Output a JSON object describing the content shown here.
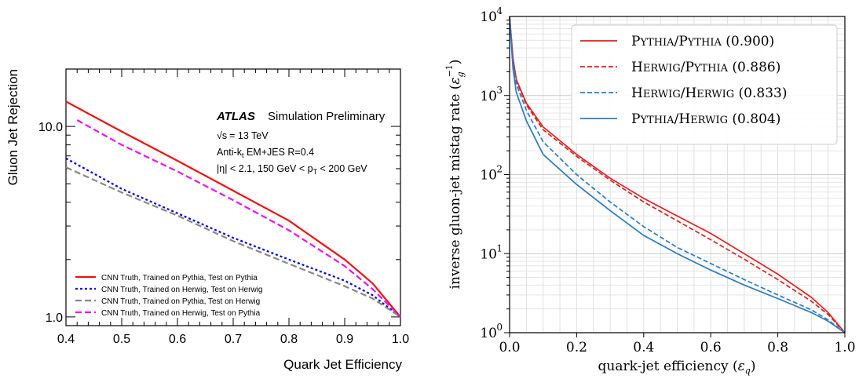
{
  "chart_data": [
    {
      "type": "line",
      "xlabel": "Quark Jet Efficiency",
      "ylabel": "Gluon Jet Rejection",
      "xlim": [
        0.4,
        1.0
      ],
      "ylim": [
        0.9,
        20
      ],
      "y_scale": "log",
      "x_ticks": [
        "0.4",
        "0.5",
        "0.6",
        "0.7",
        "0.8",
        "0.9",
        "1.0"
      ],
      "y_tick_labels": [
        {
          "value": 1,
          "label": "1.0"
        },
        {
          "value": 10,
          "label": "10.0"
        }
      ],
      "grid": false,
      "legend_position": "bottom-left",
      "annotation": {
        "atlas": "ATLAS",
        "status": "Simulation Preliminary",
        "sqrt_s_symbol": "√s",
        "energy": "= 13 TeV",
        "jets_prefix": "Anti-k",
        "jets_sub": "t",
        "jets_suffix": " EM+JES R=0.4",
        "eta_cut": "|η| < 2.1, 150 GeV < p",
        "pt_sub": "T",
        "pt_cut": " < 200 GeV"
      },
      "series": [
        {
          "name": "CNN Truth, Trained on Pythia, Test on Pythia",
          "color": "#ee1111",
          "dash": "solid",
          "x": [
            0.4,
            0.5,
            0.6,
            0.7,
            0.8,
            0.9,
            0.95,
            1.0
          ],
          "y": [
            13.5,
            9.4,
            6.6,
            4.6,
            3.2,
            2.0,
            1.5,
            1.0
          ]
        },
        {
          "name": "CNN Truth, Trained on Herwig, Test on Herwig",
          "color": "#0000ee",
          "dash": "dotted",
          "x": [
            0.4,
            0.5,
            0.6,
            0.7,
            0.8,
            0.9,
            0.95,
            1.0
          ],
          "y": [
            6.8,
            4.7,
            3.5,
            2.6,
            2.0,
            1.55,
            1.3,
            1.0
          ]
        },
        {
          "name": "CNN Truth, Trained on Pythia, Test on Herwig",
          "color": "#888888",
          "dash": "dashed",
          "x": [
            0.4,
            0.5,
            0.6,
            0.7,
            0.8,
            0.9,
            0.95,
            1.0
          ],
          "y": [
            6.1,
            4.5,
            3.4,
            2.5,
            1.9,
            1.45,
            1.25,
            1.0
          ]
        },
        {
          "name": "CNN Truth, Trained on Herwig, Test on Pythia",
          "color": "#ee11ee",
          "dash": "dashed",
          "x": [
            0.42,
            0.5,
            0.6,
            0.7,
            0.8,
            0.9,
            0.95,
            1.0
          ],
          "y": [
            10.8,
            8.0,
            5.8,
            4.1,
            2.85,
            1.85,
            1.4,
            1.0
          ]
        }
      ]
    },
    {
      "type": "line",
      "xlabel_main": "quark-jet efficiency (",
      "xlabel_sym": "ε",
      "xlabel_sub": "q",
      "xlabel_end": ")",
      "ylabel_main": "inverse gluon-jet mistag rate (",
      "ylabel_sym": "ε",
      "ylabel_sub": "g",
      "ylabel_sup": "−1",
      "ylabel_end": ")",
      "xlim": [
        0,
        1
      ],
      "ylim": [
        1,
        10000
      ],
      "y_scale": "log",
      "x_ticks": [
        "0.0",
        "0.2",
        "0.4",
        "0.6",
        "0.8",
        "1.0"
      ],
      "y_tick_labels": [
        {
          "value": 1,
          "base": "10",
          "exp": "0"
        },
        {
          "value": 10,
          "base": "10",
          "exp": "1"
        },
        {
          "value": 100,
          "base": "10",
          "exp": "2"
        },
        {
          "value": 1000,
          "base": "10",
          "exp": "3"
        },
        {
          "value": 10000,
          "base": "10",
          "exp": "4"
        }
      ],
      "grid": true,
      "legend_position": "top-right",
      "series": [
        {
          "name_a": "Pythia",
          "name_b": "Pythia",
          "score": "(0.900)",
          "color": "#e02020",
          "dash": "solid",
          "x": [
            0.0,
            0.01,
            0.02,
            0.05,
            0.1,
            0.2,
            0.3,
            0.4,
            0.5,
            0.6,
            0.7,
            0.8,
            0.9,
            0.95,
            1.0
          ],
          "y": [
            10000,
            3000,
            1600,
            800,
            400,
            180,
            90,
            50,
            30,
            18,
            10,
            5.5,
            2.8,
            1.8,
            1.0
          ]
        },
        {
          "name_a": "Herwig",
          "name_b": "Pythia",
          "score": "(0.886)",
          "color": "#e02020",
          "dash": "dashed",
          "x": [
            0.0,
            0.01,
            0.02,
            0.05,
            0.1,
            0.2,
            0.3,
            0.4,
            0.5,
            0.6,
            0.7,
            0.8,
            0.9,
            0.95,
            1.0
          ],
          "y": [
            10000,
            2900,
            1550,
            760,
            370,
            170,
            85,
            45,
            26,
            15,
            8.5,
            4.7,
            2.5,
            1.7,
            1.0
          ]
        },
        {
          "name_a": "Herwig",
          "name_b": "Herwig",
          "score": "(0.833)",
          "color": "#2b7bc4",
          "dash": "dashed",
          "x": [
            0.0,
            0.01,
            0.02,
            0.05,
            0.1,
            0.2,
            0.3,
            0.4,
            0.5,
            0.6,
            0.7,
            0.8,
            0.9,
            0.95,
            1.0
          ],
          "y": [
            10000,
            2600,
            1400,
            650,
            260,
            100,
            45,
            22,
            12,
            7.5,
            4.7,
            3.0,
            1.95,
            1.45,
            1.0
          ]
        },
        {
          "name_a": "Pythia",
          "name_b": "Herwig",
          "score": "(0.804)",
          "color": "#2b7bc4",
          "dash": "solid",
          "x": [
            0.0,
            0.01,
            0.02,
            0.05,
            0.1,
            0.2,
            0.3,
            0.4,
            0.5,
            0.6,
            0.7,
            0.8,
            0.9,
            0.95,
            1.0
          ],
          "y": [
            10000,
            2200,
            1100,
            480,
            180,
            75,
            35,
            17,
            10,
            6.2,
            4.0,
            2.7,
            1.8,
            1.4,
            1.0
          ]
        }
      ]
    }
  ]
}
